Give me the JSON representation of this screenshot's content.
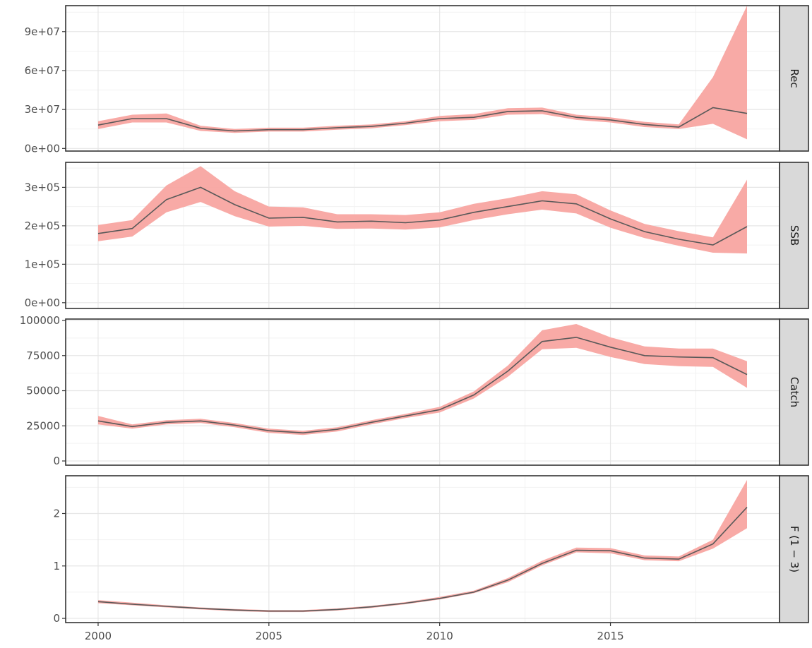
{
  "chart_data": {
    "type": "area",
    "layout": "faceted",
    "x": [
      2000,
      2001,
      2002,
      2003,
      2004,
      2005,
      2006,
      2007,
      2008,
      2009,
      2010,
      2011,
      2012,
      2013,
      2014,
      2015,
      2016,
      2017,
      2018,
      2019
    ],
    "x_ticks": [
      2000,
      2005,
      2010,
      2015
    ],
    "x_tick_labels": [
      "2000",
      "2005",
      "2010",
      "2015"
    ],
    "xlim": [
      1999.05,
      2019.95
    ],
    "xlabel": "",
    "line_color": "#595959",
    "band_color": "#f8a5a1",
    "grid": true,
    "legend": "none",
    "panels": [
      {
        "label": "Rec",
        "ylim": [
          -2000000,
          110000000
        ],
        "ticks": [
          0,
          30000000,
          60000000,
          90000000
        ],
        "tick_labels": [
          "0e+00",
          "3e+07",
          "6e+07",
          "9e+07"
        ],
        "values": [
          18000000,
          23000000,
          23000000,
          15500000,
          13500000,
          14500000,
          14500000,
          16000000,
          17000000,
          19500000,
          23000000,
          24000000,
          28500000,
          29000000,
          24000000,
          22000000,
          18500000,
          16500000,
          31500000,
          27000000
        ],
        "lower": [
          15000000,
          20000000,
          20000000,
          13500000,
          12000000,
          13000000,
          13000000,
          14500000,
          15500000,
          18000000,
          21000000,
          22000000,
          26000000,
          26500000,
          22000000,
          20000000,
          16500000,
          15000000,
          19000000,
          7000000
        ],
        "upper": [
          21000000,
          26000000,
          27000000,
          17500000,
          15000000,
          16000000,
          16000000,
          17500000,
          18500000,
          21000000,
          25000000,
          26500000,
          31000000,
          31500000,
          26000000,
          24000000,
          20500000,
          18500000,
          55000000,
          110000000
        ]
      },
      {
        "label": "SSB",
        "ylim": [
          -15000,
          365000
        ],
        "ticks": [
          0,
          100000,
          200000,
          300000
        ],
        "tick_labels": [
          "0e+00",
          "1e+05",
          "2e+05",
          "3e+05"
        ],
        "values": [
          180000,
          193000,
          268000,
          300000,
          255000,
          220000,
          222000,
          210000,
          212000,
          208000,
          215000,
          235000,
          250000,
          265000,
          257000,
          218000,
          185000,
          165000,
          150000,
          198000
        ],
        "lower": [
          160000,
          172000,
          235000,
          262000,
          225000,
          198000,
          200000,
          192000,
          193000,
          190000,
          196000,
          215000,
          230000,
          242000,
          232000,
          195000,
          168000,
          148000,
          130000,
          128000
        ],
        "upper": [
          202000,
          215000,
          305000,
          355000,
          290000,
          250000,
          248000,
          230000,
          230000,
          228000,
          235000,
          257000,
          272000,
          290000,
          282000,
          240000,
          205000,
          186000,
          170000,
          320000
        ]
      },
      {
        "label": "Catch",
        "ylim": [
          -3000,
          101000
        ],
        "ticks": [
          0,
          25000,
          50000,
          75000,
          100000
        ],
        "tick_labels": [
          "0",
          "25000",
          "50000",
          "75000",
          "100000"
        ],
        "values": [
          28500,
          24500,
          27500,
          28500,
          25500,
          21500,
          20000,
          22500,
          27500,
          32000,
          36500,
          47000,
          64000,
          85000,
          88000,
          81000,
          75000,
          74000,
          73500,
          61500
        ],
        "lower": [
          26000,
          23000,
          26000,
          27000,
          24000,
          20000,
          18500,
          21000,
          26000,
          30500,
          34500,
          44500,
          60000,
          79500,
          80500,
          74000,
          69000,
          67500,
          67000,
          52000
        ],
        "upper": [
          32000,
          26000,
          29000,
          30000,
          27000,
          23000,
          21500,
          24000,
          29000,
          33500,
          38500,
          49500,
          68000,
          93000,
          97500,
          88000,
          81500,
          80000,
          80000,
          71000
        ]
      },
      {
        "label": "F (1 − 3)",
        "ylim": [
          -0.08,
          2.72
        ],
        "ticks": [
          0,
          1,
          2
        ],
        "tick_labels": [
          "0",
          "1",
          "2"
        ],
        "values": [
          0.32,
          0.27,
          0.23,
          0.19,
          0.16,
          0.14,
          0.14,
          0.17,
          0.22,
          0.29,
          0.38,
          0.5,
          0.73,
          1.05,
          1.3,
          1.29,
          1.15,
          1.13,
          1.42,
          2.12
        ],
        "lower": [
          0.29,
          0.25,
          0.21,
          0.17,
          0.14,
          0.12,
          0.12,
          0.15,
          0.2,
          0.27,
          0.36,
          0.48,
          0.69,
          1.01,
          1.26,
          1.24,
          1.11,
          1.09,
          1.33,
          1.72
        ],
        "upper": [
          0.35,
          0.3,
          0.25,
          0.21,
          0.18,
          0.16,
          0.16,
          0.19,
          0.24,
          0.31,
          0.41,
          0.53,
          0.77,
          1.1,
          1.35,
          1.34,
          1.2,
          1.18,
          1.5,
          2.64
        ]
      }
    ]
  }
}
